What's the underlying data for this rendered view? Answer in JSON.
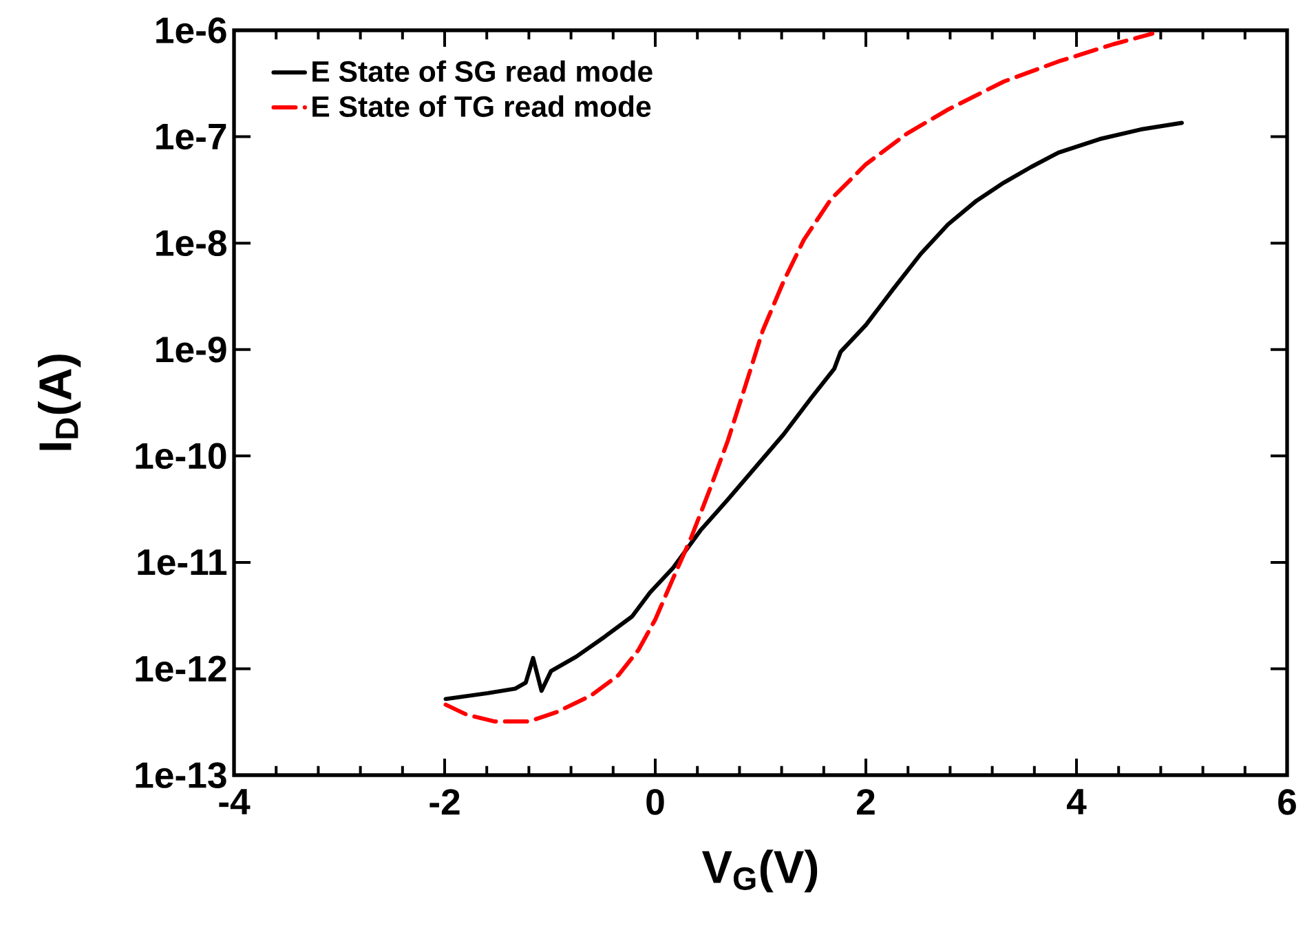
{
  "chart_data": {
    "type": "line",
    "xlabel": "V$_{G}$(V)",
    "ylabel": "I$_{D}$(A)",
    "log": "y",
    "xlim": [
      -4,
      6
    ],
    "xticks": [
      -4,
      -2,
      0,
      2,
      4,
      6
    ],
    "ylim": [
      1e-13,
      1e-06
    ],
    "yticks": [
      {
        "value": 1e-13,
        "label": "1e-13"
      },
      {
        "value": 1e-12,
        "label": "1e-12"
      },
      {
        "value": 1e-11,
        "label": "1e-11"
      },
      {
        "value": 1e-10,
        "label": "1e-10"
      },
      {
        "value": 1e-09,
        "label": "1e-9"
      },
      {
        "value": 1e-08,
        "label": "1e-8"
      },
      {
        "value": 1e-07,
        "label": "1e-7"
      },
      {
        "value": 1e-06,
        "label": "1e-6"
      }
    ],
    "legend": "top left",
    "marker": "none",
    "series": [
      {
        "name": "E State of SG read mode",
        "color": "#000000",
        "line_style": "solid",
        "x": [
          -1.99,
          -1.59,
          -1.33,
          -1.23,
          -1.16,
          -1.08,
          -0.99,
          -0.75,
          -0.48,
          -0.22,
          -0.05,
          0.17,
          0.43,
          0.69,
          0.95,
          1.22,
          1.48,
          1.7,
          1.76,
          2.0,
          2.26,
          2.52,
          2.78,
          3.05,
          3.31,
          3.57,
          3.83,
          4.22,
          4.61,
          5.0
        ],
        "values": [
          5.2e-13,
          5.9e-13,
          6.5e-13,
          7.4e-13,
          1.26e-12,
          6.2e-13,
          9.5e-13,
          1.3e-12,
          2e-12,
          3.1e-12,
          5.2e-12,
          8.9e-12,
          2e-11,
          3.9e-11,
          7.8e-11,
          1.6e-10,
          3.5e-10,
          6.6e-10,
          9.5e-10,
          1.7e-09,
          3.7e-09,
          7.9e-09,
          1.5e-08,
          2.5e-08,
          3.7e-08,
          5.2e-08,
          7.1e-08,
          9.5e-08,
          1.17e-07,
          1.35e-07
        ]
      },
      {
        "name": "E State of TG read mode",
        "color": "#ff0000",
        "line_style": "dashed",
        "x": [
          -1.99,
          -1.79,
          -1.53,
          -1.2,
          -0.94,
          -0.61,
          -0.35,
          -0.16,
          0.0,
          0.17,
          0.34,
          0.52,
          0.69,
          0.86,
          1.02,
          1.22,
          1.41,
          1.67,
          2.0,
          2.39,
          2.78,
          3.31,
          3.83,
          4.35,
          4.72
        ],
        "values": [
          4.6e-13,
          3.7e-13,
          3.2e-13,
          3.2e-13,
          3.9e-13,
          5.6e-13,
          8.7e-13,
          1.5e-12,
          2.9e-12,
          7.1e-12,
          1.7e-11,
          4.9e-11,
          1.4e-10,
          4.7e-10,
          1.5e-09,
          4.4e-09,
          1.07e-08,
          2.6e-08,
          5.5e-08,
          1.07e-07,
          1.8e-07,
          3.3e-07,
          5.1e-07,
          7.4e-07,
          9.3e-07
        ]
      }
    ]
  }
}
